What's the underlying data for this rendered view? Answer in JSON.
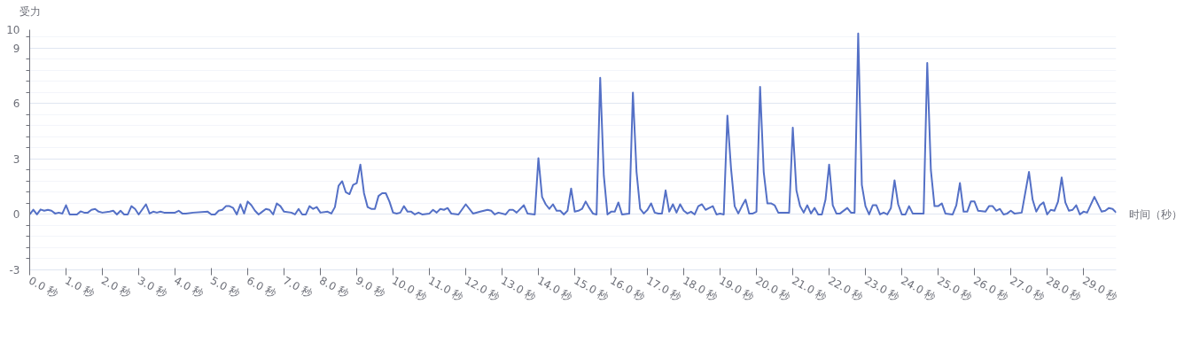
{
  "chart_data": {
    "type": "line",
    "xlabel": "时间（秒）",
    "ylabel": "受力",
    "xlim": [
      0,
      29.9
    ],
    "xticks": [
      {
        "value": 0,
        "label": "0.0 秒"
      },
      {
        "value": 1,
        "label": "1.0 秒"
      },
      {
        "value": 2,
        "label": "2.0 秒"
      },
      {
        "value": 3,
        "label": "3.0 秒"
      },
      {
        "value": 4,
        "label": "4.0 秒"
      },
      {
        "value": 5,
        "label": "5.0 秒"
      },
      {
        "value": 6,
        "label": "6.0 秒"
      },
      {
        "value": 7,
        "label": "7.0 秒"
      },
      {
        "value": 8,
        "label": "8.0 秒"
      },
      {
        "value": 9,
        "label": "9.0 秒"
      },
      {
        "value": 10,
        "label": "10.0 秒"
      },
      {
        "value": 11,
        "label": "11.0 秒"
      },
      {
        "value": 12,
        "label": "12.0 秒"
      },
      {
        "value": 13,
        "label": "13.0 秒"
      },
      {
        "value": 14,
        "label": "14.0 秒"
      },
      {
        "value": 15,
        "label": "15.0 秒"
      },
      {
        "value": 16,
        "label": "16.0 秒"
      },
      {
        "value": 17,
        "label": "17.0 秒"
      },
      {
        "value": 18,
        "label": "18.0 秒"
      },
      {
        "value": 19,
        "label": "19.0 秒"
      },
      {
        "value": 20,
        "label": "20.0 秒"
      },
      {
        "value": 21,
        "label": "21.0 秒"
      },
      {
        "value": 22,
        "label": "22.0 秒"
      },
      {
        "value": 23,
        "label": "23.0 秒"
      },
      {
        "value": 24,
        "label": "24.0 秒"
      },
      {
        "value": 25,
        "label": "25.0 秒"
      },
      {
        "value": 26,
        "label": "26.0 秒"
      },
      {
        "value": 27,
        "label": "27.0 秒"
      },
      {
        "value": 28,
        "label": "28.0 秒"
      },
      {
        "value": 29,
        "label": "29.0 秒"
      }
    ],
    "ylim": [
      -3,
      10
    ],
    "yticks": [
      -3,
      {
        "value": -2.4,
        "label": null
      },
      {
        "value": -1.8,
        "label": null
      },
      {
        "value": -1.2,
        "label": null
      },
      {
        "value": -0.6,
        "label": null
      },
      0,
      {
        "value": 0.6,
        "label": null
      },
      {
        "value": 1.2,
        "label": null
      },
      {
        "value": 1.8,
        "label": null
      },
      {
        "value": 2.4,
        "label": null
      },
      3,
      {
        "value": 3.6,
        "label": null
      },
      {
        "value": 4.2,
        "label": null
      },
      {
        "value": 4.8,
        "label": null
      },
      {
        "value": 5.4,
        "label": null
      },
      6,
      {
        "value": 6.6,
        "label": null
      },
      {
        "value": 7.2,
        "label": null
      },
      {
        "value": 7.8,
        "label": null
      },
      {
        "value": 8.4,
        "label": null
      },
      9,
      {
        "value": 9.6,
        "label": null
      },
      10
    ],
    "grid": "y",
    "marker": "none",
    "line_style": "solid",
    "x": [
      0,
      0.1,
      0.2,
      0.3,
      0.4,
      0.5,
      0.6,
      0.7,
      0.8,
      0.9,
      1.0,
      1.1,
      1.3,
      1.4,
      1.5,
      1.6,
      1.7,
      1.8,
      1.9,
      2.0,
      2.2,
      2.3,
      2.4,
      2.5,
      2.6,
      2.7,
      2.8,
      2.9,
      3.0,
      3.2,
      3.3,
      3.4,
      3.5,
      3.6,
      3.7,
      4.0,
      4.1,
      4.2,
      4.3,
      4.5,
      4.9,
      5.0,
      5.1,
      5.2,
      5.3,
      5.4,
      5.5,
      5.6,
      5.7,
      5.8,
      5.9,
      6.0,
      6.1,
      6.2,
      6.3,
      6.4,
      6.5,
      6.6,
      6.7,
      6.8,
      6.9,
      7.0,
      7.2,
      7.3,
      7.4,
      7.5,
      7.6,
      7.7,
      7.8,
      7.9,
      8.0,
      8.2,
      8.3,
      8.4,
      8.5,
      8.6,
      8.7,
      8.8,
      8.9,
      9.0,
      9.1,
      9.2,
      9.3,
      9.4,
      9.5,
      9.6,
      9.7,
      9.8,
      9.9,
      10.0,
      10.1,
      10.2,
      10.3,
      10.4,
      10.5,
      10.6,
      10.7,
      10.8,
      11.0,
      11.1,
      11.2,
      11.3,
      11.4,
      11.5,
      11.6,
      11.8,
      12.0,
      12.2,
      12.4,
      12.6,
      12.7,
      12.8,
      12.9,
      13.1,
      13.2,
      13.3,
      13.4,
      13.6,
      13.7,
      13.9,
      14.0,
      14.1,
      14.2,
      14.3,
      14.4,
      14.5,
      14.6,
      14.7,
      14.8,
      14.9,
      15.0,
      15.1,
      15.2,
      15.3,
      15.4,
      15.5,
      15.6,
      15.7,
      15.8,
      15.9,
      16.0,
      16.1,
      16.2,
      16.3,
      16.5,
      16.6,
      16.7,
      16.8,
      16.9,
      17.0,
      17.1,
      17.2,
      17.3,
      17.4,
      17.5,
      17.6,
      17.7,
      17.8,
      17.9,
      18.0,
      18.1,
      18.2,
      18.3,
      18.4,
      18.5,
      18.6,
      18.7,
      18.8,
      18.9,
      19.0,
      19.1,
      19.2,
      19.3,
      19.4,
      19.5,
      19.6,
      19.7,
      19.8,
      19.9,
      20.0,
      20.1,
      20.2,
      20.3,
      20.4,
      20.5,
      20.6,
      20.8,
      20.9,
      21.0,
      21.1,
      21.2,
      21.3,
      21.4,
      21.5,
      21.6,
      21.7,
      21.8,
      21.9,
      22.0,
      22.1,
      22.2,
      22.3,
      22.5,
      22.6,
      22.7,
      22.8,
      22.9,
      23.0,
      23.1,
      23.2,
      23.3,
      23.4,
      23.5,
      23.6,
      23.7,
      23.8,
      23.9,
      24.0,
      24.1,
      24.2,
      24.3,
      24.5,
      24.6,
      24.7,
      24.8,
      24.9,
      25.0,
      25.1,
      25.2,
      25.4,
      25.5,
      25.6,
      25.7,
      25.8,
      25.9,
      26.0,
      26.1,
      26.3,
      26.4,
      26.5,
      26.6,
      26.7,
      26.8,
      26.9,
      27.0,
      27.1,
      27.3,
      27.5,
      27.6,
      27.7,
      27.8,
      27.9,
      28.0,
      28.1,
      28.2,
      28.3,
      28.4,
      28.5,
      28.6,
      28.7,
      28.8,
      28.9,
      29.0,
      29.1,
      29.3,
      29.5,
      29.6,
      29.7,
      29.8,
      29.9
    ],
    "series": [
      {
        "color": "#5470c6",
        "values": [
          0,
          0.26,
          0,
          0.27,
          0.2,
          0.25,
          0.2,
          0.05,
          0.1,
          0.05,
          0.5,
          0,
          0,
          0.17,
          0.1,
          0.1,
          0.25,
          0.3,
          0.15,
          0.1,
          0.15,
          0.2,
          0,
          0.2,
          0,
          0,
          0.45,
          0.3,
          0,
          0.55,
          0.05,
          0.15,
          0.1,
          0.15,
          0.1,
          0.1,
          0.2,
          0.05,
          0.05,
          0.1,
          0.15,
          0,
          0,
          0.2,
          0.25,
          0.45,
          0.45,
          0.35,
          0,
          0.55,
          0.05,
          0.7,
          0.5,
          0.2,
          0,
          0.15,
          0.3,
          0.25,
          0,
          0.6,
          0.45,
          0.15,
          0.1,
          0,
          0.3,
          0,
          0,
          0.45,
          0.3,
          0.4,
          0.1,
          0.15,
          0.05,
          0.4,
          1.55,
          1.8,
          1.2,
          1.1,
          1.6,
          1.7,
          2.7,
          1.15,
          0.4,
          0.3,
          0.3,
          1.0,
          1.15,
          1.15,
          0.7,
          0.1,
          0.05,
          0.1,
          0.45,
          0.15,
          0.15,
          0,
          0.1,
          0,
          0.05,
          0.25,
          0.1,
          0.3,
          0.25,
          0.35,
          0.05,
          0,
          0.55,
          0.05,
          0.15,
          0.25,
          0.2,
          0,
          0.1,
          0,
          0.25,
          0.25,
          0.1,
          0.5,
          0.05,
          0,
          3.05,
          0.95,
          0.55,
          0.3,
          0.55,
          0.2,
          0.2,
          0,
          0.2,
          1.4,
          0.15,
          0.2,
          0.3,
          0.7,
          0.35,
          0.05,
          0,
          7.4,
          2.1,
          0,
          0.15,
          0.15,
          0.65,
          0,
          0.05,
          6.6,
          2.3,
          0.3,
          0.05,
          0.25,
          0.6,
          0.1,
          0.05,
          0.05,
          1.3,
          0.15,
          0.55,
          0.1,
          0.55,
          0.2,
          0.05,
          0.15,
          0,
          0.45,
          0.55,
          0.25,
          0.35,
          0.45,
          0,
          0.05,
          0,
          5.35,
          2.5,
          0.45,
          0.05,
          0.45,
          0.8,
          0.05,
          0.05,
          0.15,
          6.9,
          2.3,
          0.6,
          0.6,
          0.5,
          0.1,
          0.1,
          0.1,
          4.7,
          1.3,
          0.45,
          0.1,
          0.5,
          0.05,
          0.35,
          0,
          0,
          0.8,
          2.7,
          0.5,
          0.05,
          0.05,
          0.35,
          0.1,
          0.1,
          9.8,
          1.6,
          0.45,
          0,
          0.5,
          0.5,
          0,
          0.1,
          0,
          0.35,
          1.85,
          0.55,
          0,
          0,
          0.45,
          0.05,
          0.05,
          0.05,
          8.2,
          2.4,
          0.45,
          0.45,
          0.6,
          0.05,
          0,
          0.5,
          1.7,
          0.15,
          0.15,
          0.7,
          0.7,
          0.2,
          0.15,
          0.45,
          0.45,
          0.2,
          0.3,
          0,
          0.05,
          0.2,
          0.05,
          0.1,
          2.3,
          0.8,
          0.15,
          0.5,
          0.65,
          0,
          0.25,
          0.2,
          0.7,
          2.0,
          0.65,
          0.2,
          0.25,
          0.5,
          0,
          0.15,
          0.1,
          0.95,
          0.15,
          0.2,
          0.35,
          0.3,
          0.1
        ]
      }
    ]
  }
}
